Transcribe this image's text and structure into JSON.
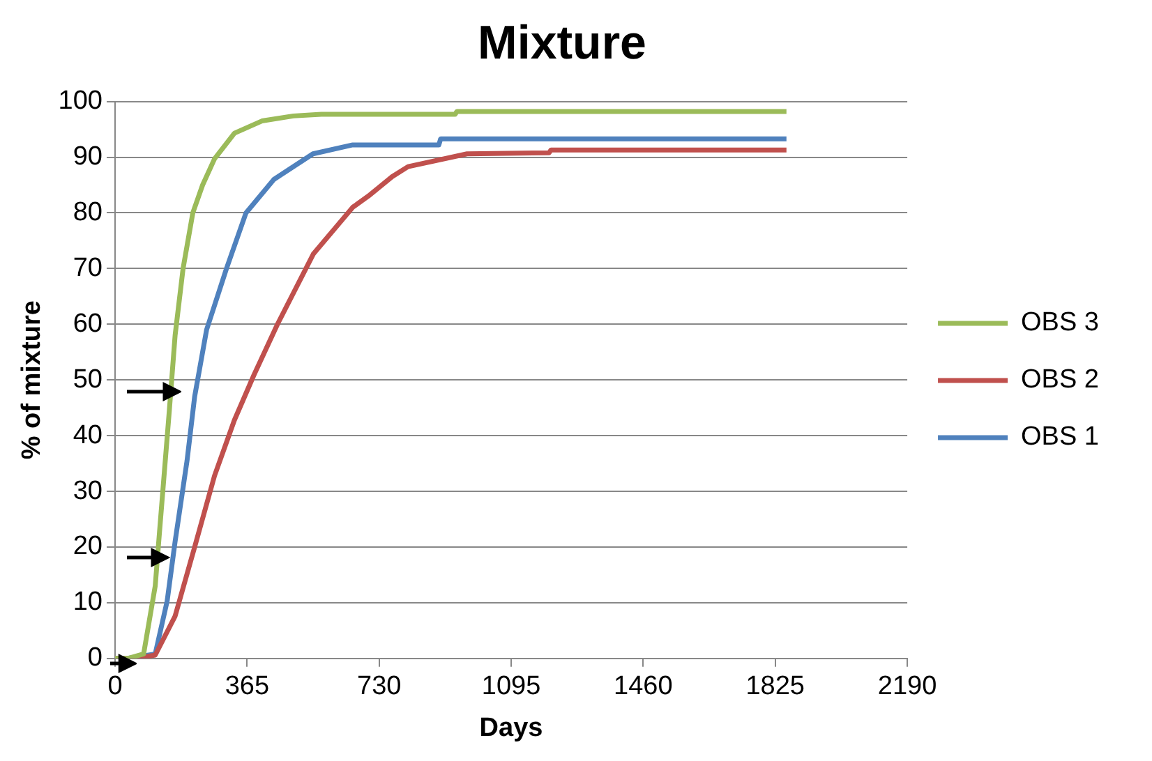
{
  "chart_data": {
    "type": "line",
    "title": "Mixture",
    "xlabel": "Days",
    "ylabel": "% of mixture",
    "xlim": [
      0,
      2190
    ],
    "xticks": [
      0,
      365,
      730,
      1095,
      1460,
      1825,
      2190
    ],
    "ylim": [
      0,
      100
    ],
    "yticks": [
      0,
      10,
      20,
      30,
      40,
      50,
      60,
      70,
      80,
      90,
      100
    ],
    "grid": "y",
    "legend": "right",
    "marker": "none",
    "line_style": "solid",
    "series": [
      {
        "name": "OBS 3",
        "color": "#9bbb59",
        "x": [
          0,
          35,
          79,
          111,
          122,
          150,
          166,
          188,
          215,
          242,
          275,
          330,
          406,
          493,
          570,
          940,
          945,
          1856
        ],
        "values": [
          0,
          0,
          0.8,
          13,
          22,
          44.5,
          58,
          70,
          80,
          85,
          89.7,
          94.3,
          96.5,
          97.4,
          97.7,
          97.7,
          98.2,
          98.2
        ]
      },
      {
        "name": "OBS 2",
        "color": "#c0504d",
        "x": [
          0,
          60,
          111,
          166,
          220,
          275,
          330,
          384,
          449,
          548,
          657,
          700,
          766,
          810,
          973,
          1200,
          1205,
          1856
        ],
        "values": [
          0,
          0,
          0.6,
          7.6,
          20,
          32.8,
          42.8,
          50.9,
          60,
          72.6,
          81,
          83,
          86.5,
          88.3,
          90.6,
          90.8,
          91.3,
          91.3
        ]
      },
      {
        "name": "OBS 1",
        "color": "#4f81bd",
        "x": [
          0,
          35,
          111,
          144,
          166,
          199,
          220,
          253,
          308,
          362,
          439,
          547,
          657,
          895,
          900,
          1856
        ],
        "values": [
          0,
          0,
          0.8,
          10.3,
          21,
          35.5,
          47,
          59,
          70,
          80,
          86,
          90.6,
          92.2,
          92.2,
          93.3,
          93.3
        ]
      }
    ]
  }
}
